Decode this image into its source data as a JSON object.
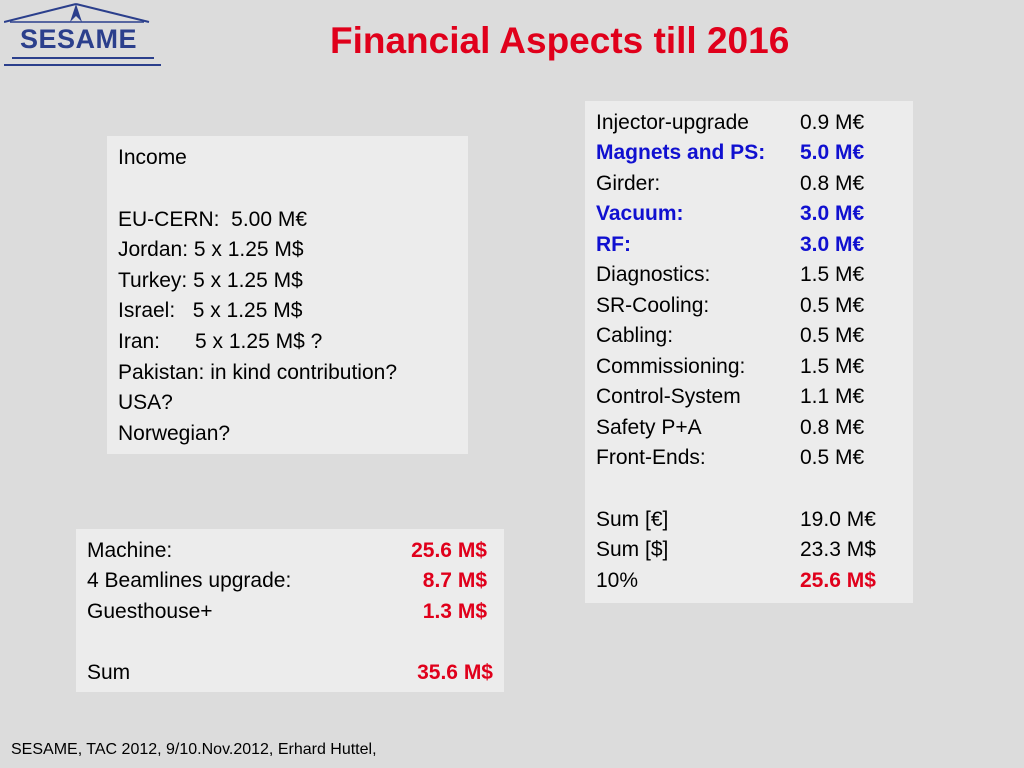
{
  "logo": {
    "text": "SESAME"
  },
  "title": "Financial Aspects till 2016",
  "income": {
    "lines": [
      "Income",
      "",
      "EU-CERN:  5.00 M€",
      "Jordan: 5 x 1.25 M$",
      "Turkey: 5 x 1.25 M$",
      "Israel:   5 x 1.25 M$",
      "Iran:      5 x 1.25 M$ ?",
      "Pakistan: in kind contribution?",
      "USA?",
      "Norwegian?"
    ]
  },
  "costs": {
    "rows": [
      {
        "label": "Injector-upgrade",
        "value": "0.9 M€"
      },
      {
        "label": "Magnets and PS:",
        "value": "5.0 M€"
      },
      {
        "label": "Girder:",
        "value": "0.8 M€"
      },
      {
        "label": "Vacuum:",
        "value": "3.0 M€"
      },
      {
        "label": "RF:",
        "value": "3.0 M€"
      },
      {
        "label": "Diagnostics:",
        "value": "1.5 M€"
      },
      {
        "label": "SR-Cooling:",
        "value": "0.5 M€"
      },
      {
        "label": "Cabling:",
        "value": "0.5 M€"
      },
      {
        "label": "Commissioning:",
        "value": "1.5 M€"
      },
      {
        "label": "Control-System",
        "value": "1.1 M€"
      },
      {
        "label": "Safety P+A",
        "value": "0.8 M€"
      },
      {
        "label": "Front-Ends:",
        "value": "0.5 M€"
      },
      {
        "label": "Sum [€]",
        "value": "19.0 M€"
      },
      {
        "label": "Sum [$]",
        "value": "23.3 M$"
      },
      {
        "label": "10%",
        "value": "25.6 M$"
      }
    ]
  },
  "machine": {
    "rows": [
      {
        "label": "Machine:",
        "value": "25.6 M$"
      },
      {
        "label": "4 Beamlines upgrade:",
        "value": "8.7 M$"
      },
      {
        "label": "Guesthouse+",
        "value": "1.3 M$"
      },
      {
        "label": "Sum",
        "value": "35.6 M$"
      }
    ]
  },
  "colors": {
    "title_red": "#e0001b",
    "highlight_blue": "#1010d0",
    "logo_blue": "#2b3f8c",
    "background": "#dcdcdc",
    "box": "#ececec"
  },
  "footer": "SESAME, TAC 2012, 9/10.Nov.2012, Erhard Huttel,"
}
